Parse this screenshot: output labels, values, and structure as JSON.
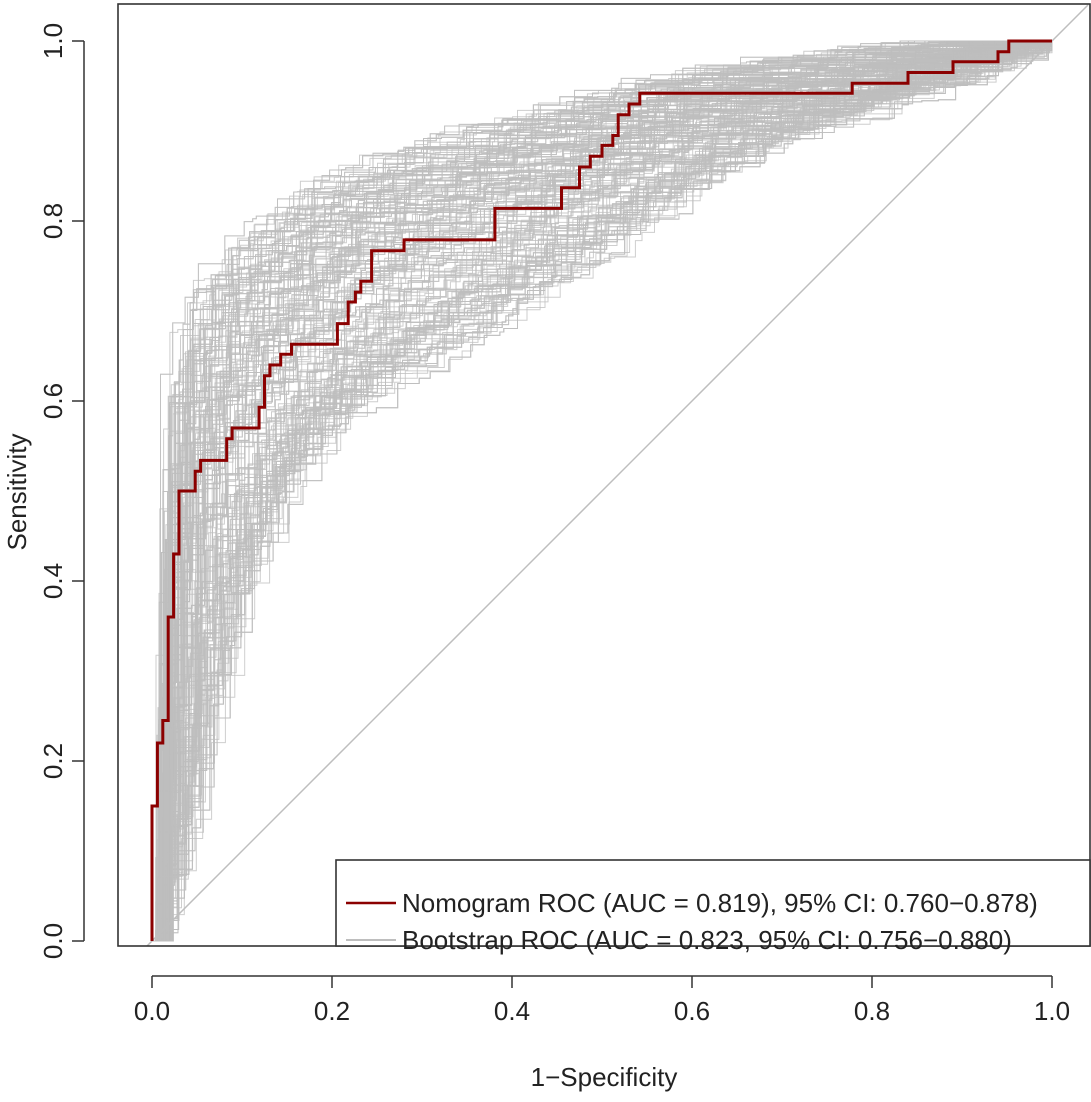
{
  "chart_data": {
    "type": "line",
    "title": "",
    "xlabel": "1−Specificity",
    "ylabel": "Sensitivity",
    "xlim": [
      0,
      1
    ],
    "ylim": [
      0,
      1
    ],
    "x_ticks": [
      "0.0",
      "0.2",
      "0.4",
      "0.6",
      "0.8",
      "1.0"
    ],
    "y_ticks": [
      "0.0",
      "0.2",
      "0.4",
      "0.6",
      "0.8",
      "1.0"
    ],
    "grid": false,
    "legend_position": "bottom-right",
    "colors": {
      "nomogram": "#8b0000",
      "bootstrap": "#bebebe",
      "diagonal": "#bebebe",
      "frame": "#333333"
    },
    "series": [
      {
        "name": "Nomogram ROC (AUC = 0.819), 95% CI: 0.760−0.878)",
        "role": "nomogram",
        "x": [
          0,
          0,
          0.006,
          0.006,
          0.012,
          0.012,
          0.018,
          0.018,
          0.024,
          0.024,
          0.03,
          0.03,
          0.036,
          0.036,
          0.048,
          0.048,
          0.054,
          0.054,
          0.06,
          0.06,
          0.083,
          0.083,
          0.089,
          0.089,
          0.119,
          0.119,
          0.125,
          0.125,
          0.131,
          0.131,
          0.143,
          0.143,
          0.155,
          0.155,
          0.206,
          0.206,
          0.218,
          0.218,
          0.226,
          0.226,
          0.232,
          0.232,
          0.244,
          0.244,
          0.25,
          0.25,
          0.28,
          0.28,
          0.381,
          0.381,
          0.455,
          0.455,
          0.475,
          0.475,
          0.487,
          0.487,
          0.5,
          0.5,
          0.512,
          0.512,
          0.518,
          0.518,
          0.53,
          0.53,
          0.542,
          0.542,
          0.555,
          0.555,
          0.778,
          0.778,
          0.84,
          0.84,
          0.89,
          0.89,
          0.94,
          0.94,
          0.952,
          0.952,
          1.0
        ],
        "y": [
          0,
          0.15,
          0.15,
          0.22,
          0.22,
          0.245,
          0.245,
          0.36,
          0.36,
          0.43,
          0.43,
          0.5,
          0.5,
          0.5,
          0.5,
          0.522,
          0.522,
          0.534,
          0.534,
          0.534,
          0.534,
          0.558,
          0.558,
          0.57,
          0.57,
          0.593,
          0.593,
          0.628,
          0.628,
          0.64,
          0.64,
          0.652,
          0.652,
          0.663,
          0.663,
          0.686,
          0.686,
          0.71,
          0.71,
          0.721,
          0.721,
          0.733,
          0.733,
          0.767,
          0.767,
          0.767,
          0.767,
          0.779,
          0.779,
          0.814,
          0.814,
          0.837,
          0.837,
          0.86,
          0.86,
          0.872,
          0.872,
          0.884,
          0.884,
          0.895,
          0.895,
          0.918,
          0.918,
          0.93,
          0.93,
          0.942,
          0.942,
          0.942,
          0.942,
          0.953,
          0.953,
          0.965,
          0.965,
          0.977,
          0.977,
          0.988,
          0.988,
          1.0,
          1.0
        ]
      },
      {
        "name": "Bootstrap ROC (AUC = 0.823, 95% CI: 0.756−0.880)",
        "role": "bootstrap",
        "band_curves": [
          {
            "x": [
              0,
              0.003,
              0.006,
              0.01,
              0.015,
              0.02,
              0.03,
              0.045,
              0.06,
              0.08,
              0.1,
              0.13,
              0.17,
              0.22,
              0.28,
              0.35,
              0.42,
              0.5,
              0.58,
              0.66,
              0.75,
              0.85,
              0.95,
              1.0
            ],
            "y": [
              0,
              0.25,
              0.4,
              0.52,
              0.6,
              0.65,
              0.7,
              0.73,
              0.75,
              0.77,
              0.79,
              0.81,
              0.84,
              0.86,
              0.88,
              0.9,
              0.92,
              0.94,
              0.96,
              0.97,
              0.98,
              0.99,
              1.0,
              1.0
            ]
          },
          {
            "x": [
              0,
              0.005,
              0.01,
              0.02,
              0.03,
              0.045,
              0.06,
              0.08,
              0.1,
              0.13,
              0.17,
              0.22,
              0.28,
              0.35,
              0.43,
              0.52,
              0.6,
              0.7,
              0.8,
              0.9,
              1.0
            ],
            "y": [
              0,
              0.12,
              0.22,
              0.38,
              0.46,
              0.53,
              0.58,
              0.62,
              0.65,
              0.69,
              0.73,
              0.77,
              0.8,
              0.83,
              0.86,
              0.89,
              0.92,
              0.94,
              0.96,
              0.98,
              1.0
            ]
          },
          {
            "x": [
              0,
              0.01,
              0.02,
              0.03,
              0.045,
              0.06,
              0.08,
              0.1,
              0.13,
              0.17,
              0.22,
              0.28,
              0.35,
              0.43,
              0.52,
              0.62,
              0.72,
              0.82,
              0.92,
              1.0
            ],
            "y": [
              0,
              0.07,
              0.14,
              0.22,
              0.33,
              0.4,
              0.46,
              0.51,
              0.56,
              0.61,
              0.66,
              0.71,
              0.75,
              0.8,
              0.85,
              0.89,
              0.92,
              0.95,
              0.98,
              1.0
            ]
          },
          {
            "x": [
              0,
              0.02,
              0.04,
              0.06,
              0.08,
              0.1,
              0.13,
              0.17,
              0.22,
              0.28,
              0.35,
              0.43,
              0.52,
              0.62,
              0.72,
              0.82,
              0.92,
              1.0
            ],
            "y": [
              0,
              0.06,
              0.14,
              0.24,
              0.32,
              0.4,
              0.47,
              0.54,
              0.59,
              0.63,
              0.67,
              0.72,
              0.78,
              0.85,
              0.9,
              0.93,
              0.96,
              1.0
            ]
          }
        ]
      }
    ]
  }
}
